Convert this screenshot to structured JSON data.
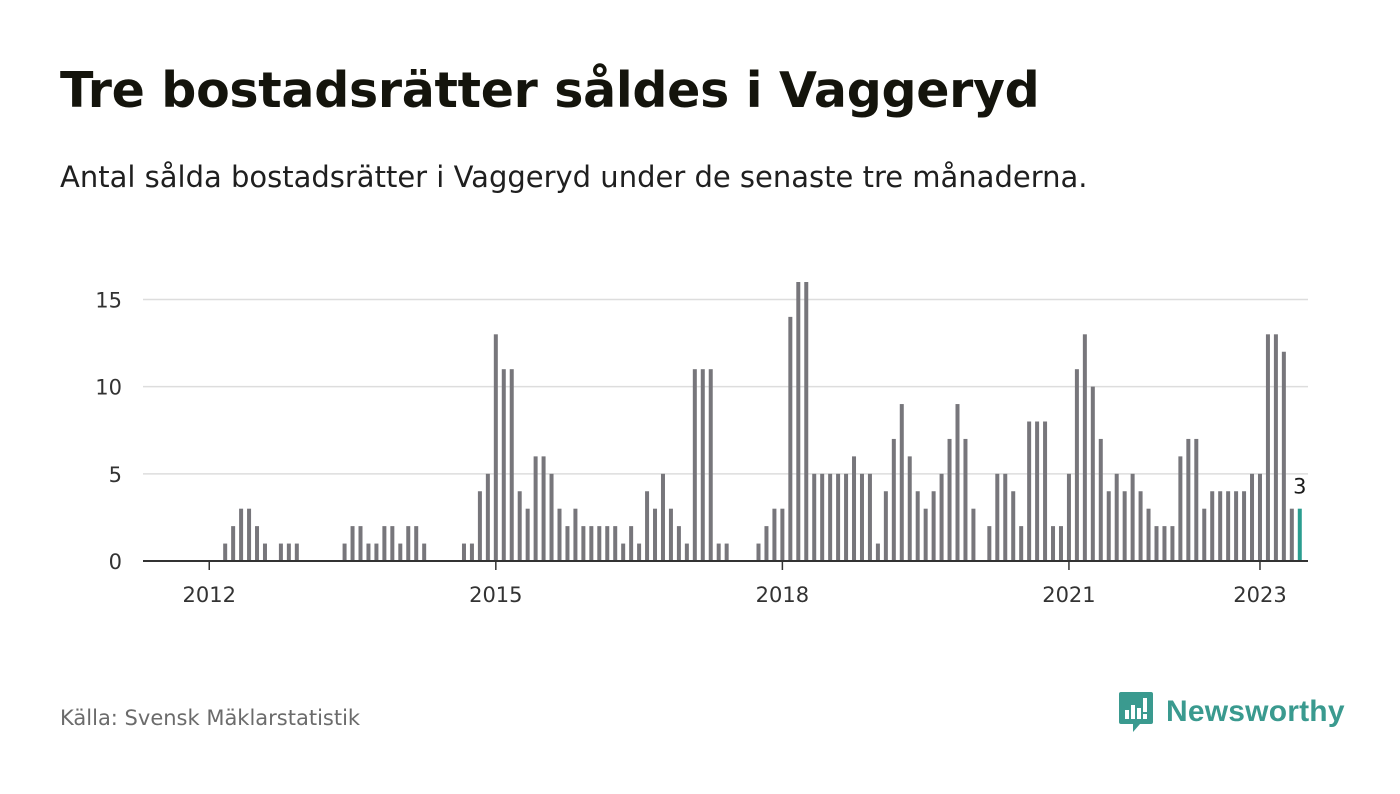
{
  "header": {
    "title": "Tre bostadsrätter såldes i Vaggeryd",
    "subtitle": "Antal sålda bostadsrätter i Vaggeryd under de senaste tre månaderna."
  },
  "footer": {
    "source": "Källa: Svensk Mäklarstatistik",
    "brand": "Newsworthy"
  },
  "colors": {
    "bar": "#77767b",
    "highlight": "#2a9d8f",
    "grid": "#dddddd",
    "axis": "#333333",
    "brand": "#3a9a8f"
  },
  "icons": {
    "brand_logo": "bar-chart-speech-bubble-icon"
  },
  "chart_data": {
    "type": "bar",
    "title": "Tre bostadsrätter såldes i Vaggeryd",
    "subtitle": "Antal sålda bostadsrätter i Vaggeryd under de senaste tre månaderna.",
    "x_axis": {
      "type": "date",
      "ticks": [
        2012,
        2015,
        2018,
        2021,
        2023
      ],
      "tick_labels": [
        "2012",
        "2015",
        "2018",
        "2021",
        "2023"
      ]
    },
    "y_axis": {
      "ticks": [
        0,
        5,
        10,
        15
      ],
      "tick_labels": [
        "0",
        "5",
        "10",
        "15"
      ],
      "ylim": [
        0,
        16
      ]
    },
    "grid": true,
    "series": [
      {
        "x_start": "2011-07",
        "frequency": "monthly",
        "values": [
          0,
          0,
          0,
          0,
          0,
          0,
          0,
          0,
          1,
          2,
          3,
          3,
          2,
          1,
          0,
          1,
          1,
          1,
          0,
          0,
          0,
          0,
          0,
          1,
          2,
          2,
          1,
          1,
          2,
          2,
          1,
          2,
          2,
          1,
          0,
          0,
          0,
          0,
          1,
          1,
          4,
          5,
          13,
          11,
          11,
          4,
          3,
          6,
          6,
          5,
          3,
          2,
          3,
          2,
          2,
          2,
          2,
          2,
          1,
          2,
          1,
          4,
          3,
          5,
          3,
          2,
          1,
          11,
          11,
          11,
          1,
          1,
          0,
          0,
          0,
          1,
          2,
          3,
          3,
          14,
          16,
          16,
          5,
          5,
          5,
          5,
          5,
          6,
          5,
          5,
          1,
          4,
          7,
          9,
          6,
          4,
          3,
          4,
          5,
          7,
          9,
          7,
          3,
          0,
          2,
          5,
          5,
          4,
          2,
          8,
          8,
          8,
          2,
          2,
          5,
          11,
          13,
          10,
          7,
          4,
          5,
          4,
          5,
          4,
          3,
          2,
          2,
          2,
          6,
          7,
          7,
          3,
          4,
          4,
          4,
          4,
          4,
          5,
          5,
          13,
          13,
          12,
          3,
          3
        ]
      }
    ],
    "annotations": [
      {
        "label": "3",
        "value": 3,
        "at": "last"
      }
    ]
  }
}
